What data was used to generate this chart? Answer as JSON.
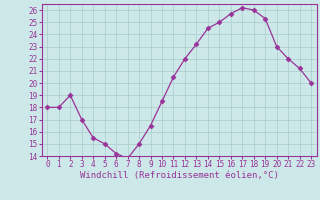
{
  "x": [
    0,
    1,
    2,
    3,
    4,
    5,
    6,
    7,
    8,
    9,
    10,
    11,
    12,
    13,
    14,
    15,
    16,
    17,
    18,
    19,
    20,
    21,
    22,
    23
  ],
  "y": [
    18,
    18,
    19,
    17,
    15.5,
    15,
    14.2,
    13.8,
    15,
    16.5,
    18.5,
    20.5,
    22,
    23.2,
    24.5,
    25,
    25.7,
    26.2,
    26,
    25.3,
    23,
    22,
    21.2,
    20
  ],
  "line_color": "#993399",
  "marker": "D",
  "marker_size": 2.5,
  "bg_color": "#cce8e8",
  "grid_color": "#aacccc",
  "title": "Windchill (Refroidissement éolien,°C)",
  "ylim": [
    14,
    26.5
  ],
  "yticks": [
    14,
    15,
    16,
    17,
    18,
    19,
    20,
    21,
    22,
    23,
    24,
    25,
    26
  ],
  "xticks": [
    0,
    1,
    2,
    3,
    4,
    5,
    6,
    7,
    8,
    9,
    10,
    11,
    12,
    13,
    14,
    15,
    16,
    17,
    18,
    19,
    20,
    21,
    22,
    23
  ],
  "tick_color": "#993399",
  "tick_fontsize": 5.5,
  "xlabel_fontsize": 6.5,
  "spine_color": "#993399"
}
